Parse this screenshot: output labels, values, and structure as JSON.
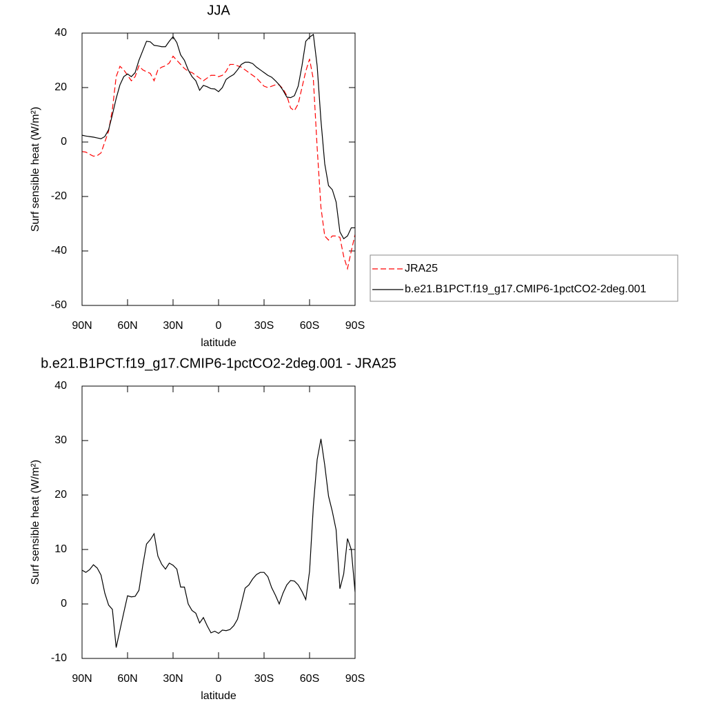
{
  "chart_data": [
    {
      "type": "line",
      "title": "JJA",
      "xlabel": "latitude",
      "ylabel": "Surf sensible heat (W/m²)",
      "xlim": [
        90,
        -90
      ],
      "xticks": [
        {
          "value": 90,
          "label": "90N"
        },
        {
          "value": 60,
          "label": "60N"
        },
        {
          "value": 30,
          "label": "30N"
        },
        0,
        {
          "value": -30,
          "label": "30S"
        },
        {
          "value": -60,
          "label": "60S"
        },
        {
          "value": -90,
          "label": "90S"
        }
      ],
      "ylim": [
        -60,
        40
      ],
      "yticks": [
        -60,
        -40,
        -20,
        0,
        20,
        40
      ],
      "x": [
        90,
        87.5,
        85,
        82.5,
        80,
        77.5,
        75,
        72.5,
        70,
        67.5,
        65,
        62.5,
        60,
        57.5,
        55,
        52.5,
        50,
        47.5,
        45,
        42.5,
        40,
        37.5,
        35,
        32.5,
        30,
        27.5,
        25,
        22.5,
        20,
        17.5,
        15,
        12.5,
        10,
        7.5,
        5,
        2.5,
        0,
        -2.5,
        -5,
        -7.5,
        -10,
        -12.5,
        -15,
        -17.5,
        -20,
        -22.5,
        -25,
        -27.5,
        -30,
        -32.5,
        -35,
        -37.5,
        -40,
        -42.5,
        -45,
        -47.5,
        -50,
        -52.5,
        -55,
        -57.5,
        -60,
        -62.5,
        -65,
        -67.5,
        -70,
        -72.5,
        -75,
        -77.5,
        -80,
        -82.5,
        -85,
        -87.5,
        -90
      ],
      "legend": "right",
      "series": [
        {
          "name": "JRA25",
          "color": "#ff0000",
          "dashed": true,
          "values": [
            -3.5,
            -3.7,
            -4.5,
            -5.2,
            -5,
            -4,
            0,
            4,
            12,
            24,
            27.8,
            26.5,
            24.5,
            22.5,
            24,
            28,
            26.5,
            25.8,
            25.2,
            22.5,
            26.5,
            27.5,
            28,
            29,
            31.5,
            30,
            28.5,
            27,
            26,
            25.5,
            24.5,
            23.5,
            22.5,
            23.5,
            24.5,
            24.5,
            24,
            24.5,
            26,
            28.5,
            28.5,
            28,
            27.5,
            26.5,
            25.5,
            24.5,
            23.5,
            22,
            20.5,
            20,
            20.5,
            21,
            21,
            19.5,
            17,
            12.5,
            11.5,
            14,
            20,
            26,
            30.5,
            23,
            -2,
            -24,
            -34.5,
            -36,
            -34.5,
            -34.5,
            -35,
            -42,
            -46.5,
            -40,
            -34
          ]
        },
        {
          "name": "b.e21.B1PCT.f19_g17.CMIP6-1pctCO2-2deg.001",
          "color": "#000000",
          "dashed": false,
          "values": [
            2.5,
            2.2,
            2,
            1.8,
            1.5,
            1.2,
            2,
            4.5,
            10,
            16,
            21,
            24,
            25,
            24,
            25.5,
            30,
            33.5,
            37,
            36.8,
            35.5,
            35.3,
            35,
            35,
            37,
            38.7,
            36.5,
            32,
            30,
            26.5,
            24,
            22.5,
            19,
            20.8,
            20.3,
            19.6,
            19.5,
            18.5,
            20,
            23,
            24,
            24.8,
            26.5,
            28.5,
            29.3,
            29.3,
            28.8,
            27.5,
            26.5,
            25.5,
            24.5,
            23.8,
            22.5,
            21,
            19,
            16.5,
            16.3,
            17,
            20.5,
            28,
            37,
            38.5,
            39.5,
            28,
            8,
            -8,
            -16,
            -17.5,
            -22,
            -33,
            -35.5,
            -34.5,
            -31.5,
            -31.5
          ]
        }
      ]
    },
    {
      "type": "line",
      "title": "b.e21.B1PCT.f19_g17.CMIP6-1pctCO2-2deg.001 - JRA25",
      "xlabel": "latitude",
      "ylabel": "Surf sensible heat (W/m²)",
      "xlim": [
        90,
        -90
      ],
      "xticks": [
        {
          "value": 90,
          "label": "90N"
        },
        {
          "value": 60,
          "label": "60N"
        },
        {
          "value": 30,
          "label": "30N"
        },
        0,
        {
          "value": -30,
          "label": "30S"
        },
        {
          "value": -60,
          "label": "60S"
        },
        {
          "value": -90,
          "label": "90S"
        }
      ],
      "ylim": [
        -10,
        40
      ],
      "yticks": [
        -10,
        0,
        10,
        20,
        30,
        40
      ],
      "x": [
        90,
        87.5,
        85,
        82.5,
        80,
        77.5,
        75,
        72.5,
        70,
        67.5,
        65,
        62.5,
        60,
        57.5,
        55,
        52.5,
        50,
        47.5,
        45,
        42.5,
        40,
        37.5,
        35,
        32.5,
        30,
        27.5,
        25,
        22.5,
        20,
        17.5,
        15,
        12.5,
        10,
        7.5,
        5,
        2.5,
        0,
        -2.5,
        -5,
        -7.5,
        -10,
        -12.5,
        -15,
        -17.5,
        -20,
        -22.5,
        -25,
        -27.5,
        -30,
        -32.5,
        -35,
        -37.5,
        -40,
        -42.5,
        -45,
        -47.5,
        -50,
        -52.5,
        -55,
        -57.5,
        -60,
        -62.5,
        -65,
        -67.5,
        -70,
        -72.5,
        -75,
        -77.5,
        -80,
        -82.5,
        -85,
        -87.5,
        -90
      ],
      "series": [
        {
          "color": "#000000",
          "dashed": false,
          "values": [
            6.2,
            5.8,
            6.3,
            7.2,
            6.6,
            5.3,
            2,
            -0.2,
            -1,
            -8,
            -4.8,
            -1.6,
            1.5,
            1.3,
            1.4,
            2.5,
            7,
            11,
            11.8,
            12.9,
            8.8,
            7.3,
            6.4,
            7.5,
            7.1,
            6.4,
            3.1,
            3.1,
            0,
            -1.2,
            -1.7,
            -3.5,
            -2.5,
            -4,
            -5.3,
            -5,
            -5.4,
            -4.8,
            -4.9,
            -4.7,
            -4,
            -2.8,
            0,
            2.9,
            3.5,
            4.6,
            5.4,
            5.8,
            5.8,
            5,
            3,
            1.6,
            0,
            2,
            3.5,
            4.3,
            4.2,
            3.5,
            2.3,
            0.8,
            6,
            18,
            26.5,
            30.3,
            25.5,
            19.8,
            17,
            13.6,
            2.8,
            5.5,
            12,
            10,
            2.2
          ]
        }
      ]
    }
  ]
}
